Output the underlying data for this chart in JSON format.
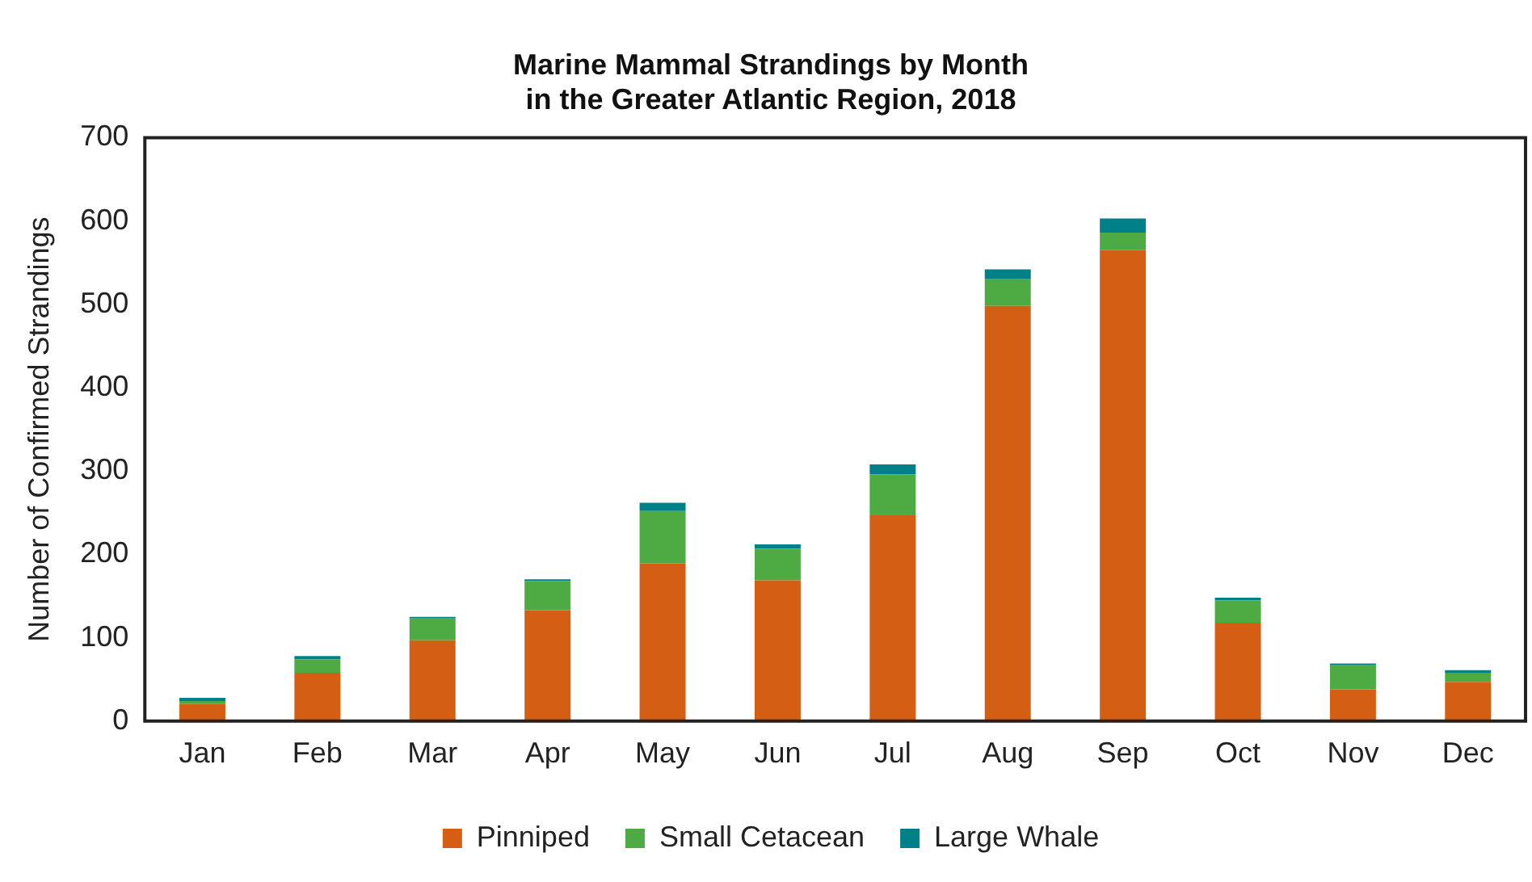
{
  "chart_data": {
    "type": "bar",
    "title": "Marine Mammal Strandings by Month\nin the Greater Atlantic Region, 2018",
    "ylabel": "Number of Confirmed Strandings",
    "categories": [
      "Jan",
      "Feb",
      "Mar",
      "Apr",
      "May",
      "Jun",
      "Jul",
      "Aug",
      "Sep",
      "Oct",
      "Nov",
      "Dec"
    ],
    "stacked": true,
    "ylim": [
      0,
      700
    ],
    "yticks": [
      0,
      100,
      200,
      300,
      400,
      500,
      600,
      700
    ],
    "grid": false,
    "legend": "bottom",
    "series": [
      {
        "name": "Pinniped",
        "color": "#d45f14",
        "values": [
          21,
          58,
          97,
          133,
          189,
          169,
          247,
          498,
          565,
          118,
          38,
          47
        ]
      },
      {
        "name": "Small Cetacean",
        "color": "#4eab44",
        "values": [
          3,
          16,
          26,
          35,
          63,
          38,
          49,
          32,
          21,
          27,
          29,
          11
        ]
      },
      {
        "name": "Large Whale",
        "color": "#00818a",
        "values": [
          4,
          4,
          2,
          2,
          10,
          5,
          12,
          12,
          17,
          3,
          2,
          3
        ]
      }
    ]
  }
}
